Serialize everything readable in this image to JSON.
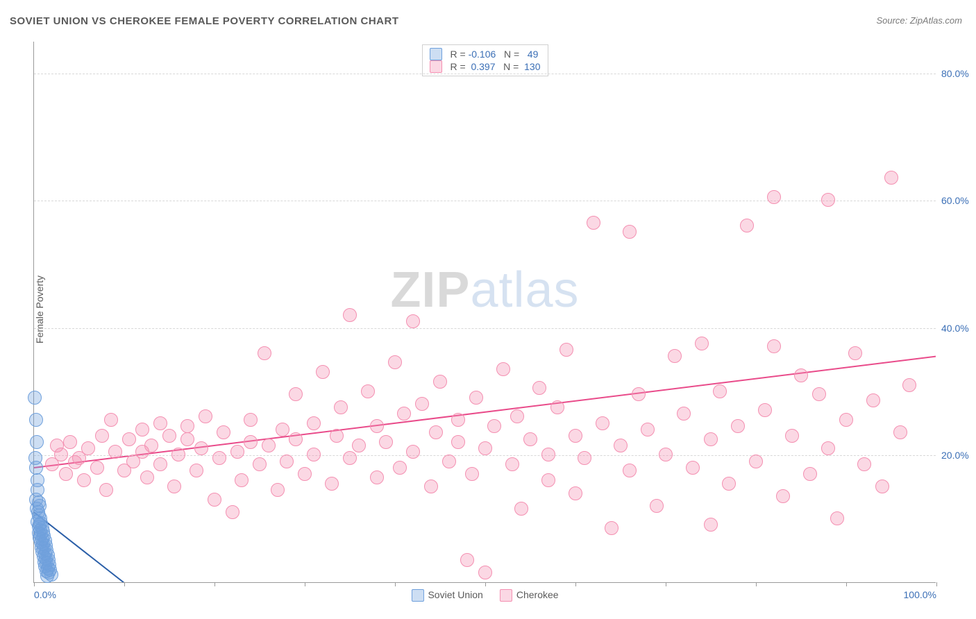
{
  "title": "SOVIET UNION VS CHEROKEE FEMALE POVERTY CORRELATION CHART",
  "source_label": "Source: ",
  "source_name": "ZipAtlas.com",
  "ylabel": "Female Poverty",
  "watermark_a": "ZIP",
  "watermark_b": "atlas",
  "chart": {
    "type": "scatter",
    "xlim": [
      0,
      100
    ],
    "ylim": [
      0,
      85
    ],
    "xtick_count": 11,
    "xtick_labels_shown": {
      "0": "0.0%",
      "100": "100.0%"
    },
    "yticks": [
      20,
      40,
      60,
      80
    ],
    "ytick_labels": [
      "20.0%",
      "40.0%",
      "60.0%",
      "80.0%"
    ],
    "background_color": "#ffffff",
    "grid_color": "#d8d8d8",
    "axis_color": "#9a9a9a",
    "tick_label_color": "#3b6fb6",
    "marker_radius": 9,
    "marker_border_width": 1.5,
    "trend_line_width": 2,
    "trend_dash_extension": true
  },
  "series": [
    {
      "id": "soviet_union",
      "label": "Soviet Union",
      "fill_color": "rgba(111,160,220,0.35)",
      "stroke_color": "#6fa0dc",
      "trend_color": "#2b5fa8",
      "trend": {
        "y_at_x0": 11.0,
        "y_at_x100": -100.0
      },
      "R": "-0.106",
      "N": "49",
      "points": [
        [
          0.1,
          29.0
        ],
        [
          0.2,
          25.5
        ],
        [
          0.3,
          22.0
        ],
        [
          0.15,
          19.5
        ],
        [
          0.25,
          18.0
        ],
        [
          0.4,
          16.0
        ],
        [
          0.35,
          14.5
        ],
        [
          0.2,
          13.0
        ],
        [
          0.5,
          12.5
        ],
        [
          0.6,
          12.0
        ],
        [
          0.3,
          11.5
        ],
        [
          0.45,
          11.0
        ],
        [
          0.55,
          10.5
        ],
        [
          0.7,
          10.0
        ],
        [
          0.4,
          9.5
        ],
        [
          0.8,
          9.3
        ],
        [
          0.6,
          9.0
        ],
        [
          0.5,
          8.7
        ],
        [
          0.9,
          8.5
        ],
        [
          0.7,
          8.2
        ],
        [
          1.0,
          8.0
        ],
        [
          0.55,
          7.7
        ],
        [
          0.8,
          7.5
        ],
        [
          1.1,
          7.3
        ],
        [
          0.65,
          7.0
        ],
        [
          0.9,
          6.8
        ],
        [
          1.2,
          6.5
        ],
        [
          0.75,
          6.3
        ],
        [
          1.0,
          6.0
        ],
        [
          1.3,
          5.8
        ],
        [
          0.85,
          5.5
        ],
        [
          1.1,
          5.3
        ],
        [
          1.4,
          5.0
        ],
        [
          0.95,
          4.8
        ],
        [
          1.2,
          4.5
        ],
        [
          1.5,
          4.3
        ],
        [
          1.05,
          4.0
        ],
        [
          1.3,
          3.7
        ],
        [
          1.6,
          3.5
        ],
        [
          1.15,
          3.2
        ],
        [
          1.4,
          3.0
        ],
        [
          1.7,
          2.7
        ],
        [
          1.25,
          2.5
        ],
        [
          1.5,
          2.2
        ],
        [
          1.8,
          2.0
        ],
        [
          1.35,
          1.7
        ],
        [
          1.6,
          1.5
        ],
        [
          1.9,
          1.2
        ],
        [
          1.45,
          1.0
        ]
      ]
    },
    {
      "id": "cherokee",
      "label": "Cherokee",
      "fill_color": "rgba(244,143,177,0.35)",
      "stroke_color": "#f48fb1",
      "trend_color": "#e94b8a",
      "trend": {
        "y_at_x0": 18.0,
        "y_at_x100": 35.5
      },
      "R": "0.397",
      "N": "130",
      "points": [
        [
          2,
          18.5
        ],
        [
          3,
          20.0
        ],
        [
          3.5,
          17.0
        ],
        [
          4,
          22.0
        ],
        [
          5,
          19.5
        ],
        [
          5.5,
          16.0
        ],
        [
          6,
          21.0
        ],
        [
          7,
          18.0
        ],
        [
          7.5,
          23.0
        ],
        [
          8,
          14.5
        ],
        [
          8.5,
          25.5
        ],
        [
          9,
          20.5
        ],
        [
          10,
          17.5
        ],
        [
          10.5,
          22.5
        ],
        [
          11,
          19.0
        ],
        [
          12,
          24.0
        ],
        [
          12,
          20.5
        ],
        [
          12.5,
          16.5
        ],
        [
          13,
          21.5
        ],
        [
          14,
          25.0
        ],
        [
          14,
          18.5
        ],
        [
          15,
          23.0
        ],
        [
          15.5,
          15.0
        ],
        [
          16,
          20.0
        ],
        [
          17,
          24.5
        ],
        [
          17,
          22.5
        ],
        [
          18,
          17.5
        ],
        [
          18.5,
          21.0
        ],
        [
          19,
          26.0
        ],
        [
          20,
          13.0
        ],
        [
          20.5,
          19.5
        ],
        [
          21,
          23.5
        ],
        [
          22,
          11.0
        ],
        [
          22.5,
          20.5
        ],
        [
          23,
          16.0
        ],
        [
          24,
          25.5
        ],
        [
          24,
          22.0
        ],
        [
          25,
          18.5
        ],
        [
          25.5,
          36.0
        ],
        [
          26,
          21.5
        ],
        [
          27,
          14.5
        ],
        [
          27.5,
          24.0
        ],
        [
          28,
          19.0
        ],
        [
          29,
          29.5
        ],
        [
          29,
          22.5
        ],
        [
          30,
          17.0
        ],
        [
          31,
          25.0
        ],
        [
          31,
          20.0
        ],
        [
          32,
          33.0
        ],
        [
          33,
          15.5
        ],
        [
          33.5,
          23.0
        ],
        [
          34,
          27.5
        ],
        [
          35,
          19.5
        ],
        [
          35,
          42.0
        ],
        [
          36,
          21.5
        ],
        [
          37,
          30.0
        ],
        [
          38,
          16.5
        ],
        [
          38,
          24.5
        ],
        [
          39,
          22.0
        ],
        [
          40,
          34.5
        ],
        [
          40.5,
          18.0
        ],
        [
          41,
          26.5
        ],
        [
          42,
          41.0
        ],
        [
          42,
          20.5
        ],
        [
          43,
          28.0
        ],
        [
          44,
          15.0
        ],
        [
          44.5,
          23.5
        ],
        [
          45,
          31.5
        ],
        [
          46,
          19.0
        ],
        [
          47,
          25.5
        ],
        [
          47,
          22.0
        ],
        [
          48,
          3.5
        ],
        [
          48.5,
          17.0
        ],
        [
          49,
          29.0
        ],
        [
          50,
          21.0
        ],
        [
          50,
          1.5
        ],
        [
          51,
          24.5
        ],
        [
          52,
          33.5
        ],
        [
          53,
          18.5
        ],
        [
          53.5,
          26.0
        ],
        [
          54,
          11.5
        ],
        [
          55,
          22.5
        ],
        [
          56,
          30.5
        ],
        [
          57,
          16.0
        ],
        [
          57,
          20.0
        ],
        [
          58,
          27.5
        ],
        [
          59,
          36.5
        ],
        [
          60,
          14.0
        ],
        [
          60,
          23.0
        ],
        [
          61,
          19.5
        ],
        [
          62,
          56.5
        ],
        [
          63,
          25.0
        ],
        [
          64,
          8.5
        ],
        [
          65,
          21.5
        ],
        [
          66,
          55.0
        ],
        [
          66,
          17.5
        ],
        [
          67,
          29.5
        ],
        [
          68,
          24.0
        ],
        [
          69,
          12.0
        ],
        [
          70,
          20.0
        ],
        [
          71,
          35.5
        ],
        [
          72,
          26.5
        ],
        [
          73,
          18.0
        ],
        [
          74,
          37.5
        ],
        [
          75,
          9.0
        ],
        [
          75,
          22.5
        ],
        [
          76,
          30.0
        ],
        [
          77,
          15.5
        ],
        [
          78,
          24.5
        ],
        [
          79,
          56.0
        ],
        [
          80,
          19.0
        ],
        [
          81,
          27.0
        ],
        [
          82,
          37.0
        ],
        [
          82,
          60.5
        ],
        [
          83,
          13.5
        ],
        [
          84,
          23.0
        ],
        [
          85,
          32.5
        ],
        [
          86,
          17.0
        ],
        [
          87,
          29.5
        ],
        [
          88,
          60.0
        ],
        [
          88,
          21.0
        ],
        [
          89,
          10.0
        ],
        [
          90,
          25.5
        ],
        [
          91,
          36.0
        ],
        [
          92,
          18.5
        ],
        [
          93,
          28.5
        ],
        [
          94,
          15.0
        ],
        [
          95,
          63.5
        ],
        [
          96,
          23.5
        ],
        [
          97,
          31.0
        ],
        [
          2.5,
          21.5
        ],
        [
          4.5,
          18.8
        ]
      ]
    }
  ],
  "legend_labels": {
    "R_prefix": "R = ",
    "N_prefix": "N = "
  }
}
